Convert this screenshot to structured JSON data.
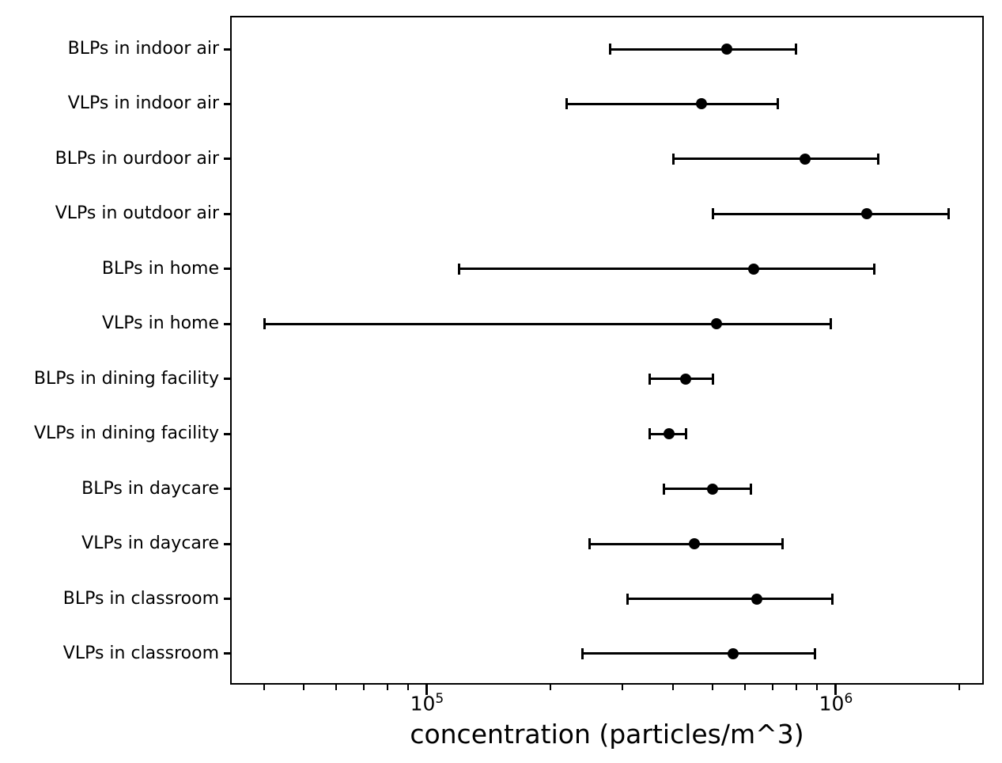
{
  "figure": {
    "background": "#ffffff",
    "foreground": "#000000"
  },
  "chart_data": {
    "type": "scatter",
    "subtype": "horizontal-errorbar-dot-plot",
    "title": "",
    "xlabel": "concentration (particles/m^3)",
    "ylabel": "",
    "xscale": "log",
    "xlim": [
      33000,
      2300000
    ],
    "grid": false,
    "legend": "none",
    "marker": {
      "shape": "circle",
      "color": "#000000"
    },
    "x_major_ticks": [
      {
        "value": 100000,
        "mantissa": "10",
        "exponent": "5"
      },
      {
        "value": 1000000,
        "mantissa": "10",
        "exponent": "6"
      }
    ],
    "categories": [
      "BLPs in indoor air",
      "VLPs in indoor air",
      "BLPs in ourdoor air",
      "VLPs in outdoor air",
      "BLPs in home",
      "VLPs in home",
      "BLPs in dining facility",
      "VLPs in dining facility",
      "BLPs in daycare",
      "VLPs in daycare",
      "BLPs in classroom",
      "VLPs in classroom"
    ],
    "points": [
      {
        "category": "BLPs in indoor air",
        "value": 540000,
        "low": 280000,
        "high": 800000
      },
      {
        "category": "VLPs in indoor air",
        "value": 470000,
        "low": 220000,
        "high": 720000
      },
      {
        "category": "BLPs in ourdoor air",
        "value": 840000,
        "low": 400000,
        "high": 1270000
      },
      {
        "category": "VLPs in outdoor air",
        "value": 1190000,
        "low": 500000,
        "high": 1890000
      },
      {
        "category": "BLPs in home",
        "value": 630000,
        "low": 120000,
        "high": 1240000
      },
      {
        "category": "VLPs in home",
        "value": 510000,
        "low": 40000,
        "high": 970000
      },
      {
        "category": "BLPs in dining facility",
        "value": 430000,
        "low": 350000,
        "high": 500000
      },
      {
        "category": "VLPs in dining facility",
        "value": 390000,
        "low": 350000,
        "high": 430000
      },
      {
        "category": "BLPs in daycare",
        "value": 500000,
        "low": 380000,
        "high": 620000
      },
      {
        "category": "VLPs in daycare",
        "value": 450000,
        "low": 250000,
        "high": 740000
      },
      {
        "category": "BLPs in classroom",
        "value": 640000,
        "low": 310000,
        "high": 980000
      },
      {
        "category": "VLPs in classroom",
        "value": 560000,
        "low": 240000,
        "high": 890000
      }
    ]
  }
}
